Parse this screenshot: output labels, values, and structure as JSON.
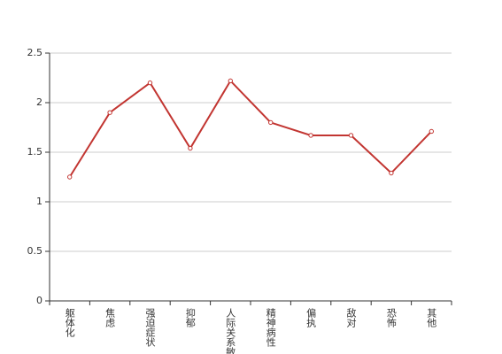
{
  "chart_data": {
    "type": "line",
    "categories": [
      "躯体化",
      "焦虑",
      "强迫症状",
      "抑郁",
      "人际关系敏感",
      "精神病性",
      "偏执",
      "敌对",
      "恐怖",
      "其他"
    ],
    "values": [
      1.25,
      1.9,
      2.2,
      1.54,
      2.22,
      1.8,
      1.67,
      1.67,
      1.29,
      1.71
    ],
    "color": "#c23531",
    "ylim": [
      0,
      2.5
    ],
    "yticks": [
      0,
      0.5,
      1,
      1.5,
      2,
      2.5
    ],
    "grid": true
  }
}
